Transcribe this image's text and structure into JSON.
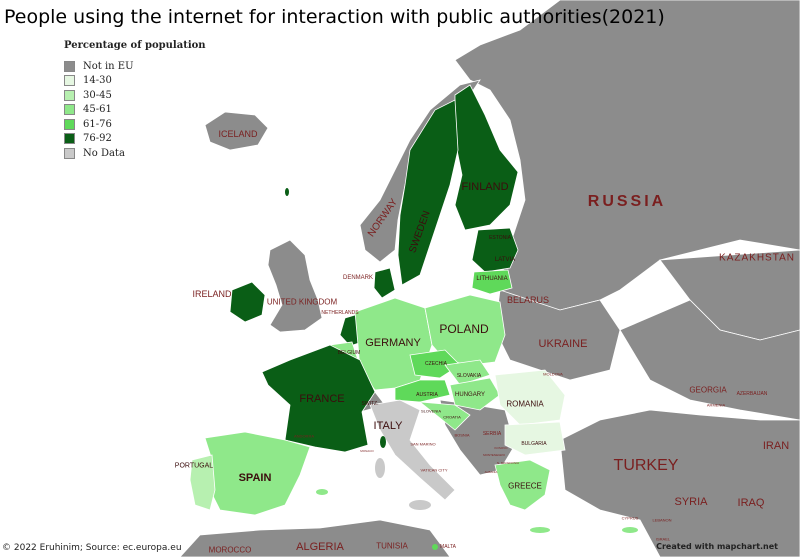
{
  "title": "People using the internet for interaction with public authorities(2021)",
  "legend": {
    "title": "Percentage of population",
    "items": [
      {
        "label": "Not in EU",
        "color": "#8c8c8c"
      },
      {
        "label": "14-30",
        "color": "#e6f7e2"
      },
      {
        "label": "30-45",
        "color": "#b7f0b0"
      },
      {
        "label": "45-61",
        "color": "#8fe88a"
      },
      {
        "label": "61-76",
        "color": "#5fd95a"
      },
      {
        "label": "76-92",
        "color": "#0a5e16"
      },
      {
        "label": "No Data",
        "color": "#c9c9c9"
      }
    ]
  },
  "footer": {
    "source": "© 2022 Eruhinim; Source: ec.europa.eu",
    "credit": "Created with mapchart.net"
  },
  "labels": {
    "russia": "RUSSIA",
    "kazakhstan": "KAZAKHSTAN",
    "finland": "FINLAND",
    "sweden": "SWEDEN",
    "norway": "NORWAY",
    "iceland": "ICELAND",
    "ireland": "IRELAND",
    "uk": "UNITED KINGDOM",
    "denmark": "DENMARK",
    "latvia": "LATVIA",
    "estonia": "ESTONIA",
    "lithuania": "LITHUANIA",
    "belarus": "BELARUS",
    "netherlands": "NETHERLANDS",
    "belgium": "BELGIUM",
    "germany": "GERMANY",
    "poland": "POLAND",
    "ukraine": "UKRAINE",
    "czechia": "CZECHIA",
    "slovakia": "SLOVAKIA",
    "moldova": "MOLDOVA",
    "france": "FRANCE",
    "austria": "AUSTRIA",
    "hungary": "HUNGARY",
    "romania": "ROMANIA",
    "switzerland": "SWITZ.",
    "slovenia": "SLOVENIA",
    "croatia": "CROATIA",
    "italy": "ITALY",
    "bosnia": "BOSNIA",
    "serbia": "SERBIA",
    "bulgaria": "BULGARIA",
    "georgia": "GEORGIA",
    "armenia": "ARMENIA",
    "azerbaijan": "AZERBAIJAN",
    "iran": "IRAN",
    "portugal": "PORTUGAL",
    "spain": "SPAIN",
    "andorra": "ANDORRA",
    "monaco": "MONACO",
    "sanmarino": "SAN MARINO",
    "vatican": "VATICAN CITY",
    "montenegro": "MONTENEGRO",
    "albania": "ALBANIA",
    "macedonia": "N. MACEDONIA",
    "kosovo": "KOSOVO",
    "greece": "GREECE",
    "turkey": "TURKEY",
    "syria": "SYRIA",
    "iraq": "IRAQ",
    "cyprus": "CYPRUS",
    "lebanon": "LEBANON",
    "israel": "ISRAEL",
    "morocco": "MOROCCO",
    "algeria": "ALGERIA",
    "tunisia": "TUNISIA",
    "malta": "MALTA"
  }
}
